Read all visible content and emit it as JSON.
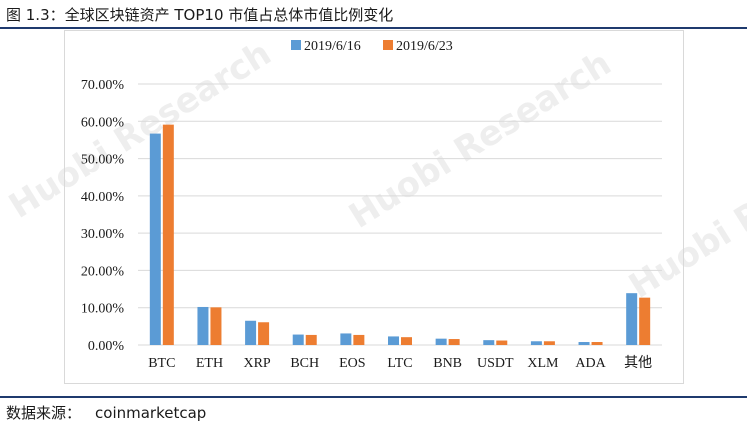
{
  "figure": {
    "title": "图 1.3：全球区块链资产 TOP10 市值占总体市值比例变化",
    "source_label": "数据来源：",
    "source_value": "coinmarketcap"
  },
  "watermarks": [
    "Huobi Research",
    "Huobi Research",
    "Huobi Research"
  ],
  "colors": {
    "series1": "#5b9bd5",
    "series2": "#ed7d31",
    "grid": "#d9d9d9",
    "rule": "#1f3a6e"
  },
  "chart_data": {
    "type": "bar",
    "categories": [
      "BTC",
      "ETH",
      "XRP",
      "BCH",
      "EOS",
      "LTC",
      "BNB",
      "USDT",
      "XLM",
      "ADA",
      "其他"
    ],
    "series": [
      {
        "name": "2019/6/16",
        "values": [
          56.7,
          10.2,
          6.5,
          2.8,
          3.1,
          2.3,
          1.7,
          1.3,
          1.0,
          0.8,
          13.9
        ]
      },
      {
        "name": "2019/6/23",
        "values": [
          59.1,
          10.1,
          6.1,
          2.7,
          2.7,
          2.1,
          1.6,
          1.2,
          1.0,
          0.8,
          12.7
        ]
      }
    ],
    "yticks": [
      "0.00%",
      "10.00%",
      "20.00%",
      "30.00%",
      "40.00%",
      "50.00%",
      "60.00%",
      "70.00%"
    ],
    "ylim": [
      0,
      70
    ],
    "grid": true,
    "legend_position": "top-center"
  }
}
